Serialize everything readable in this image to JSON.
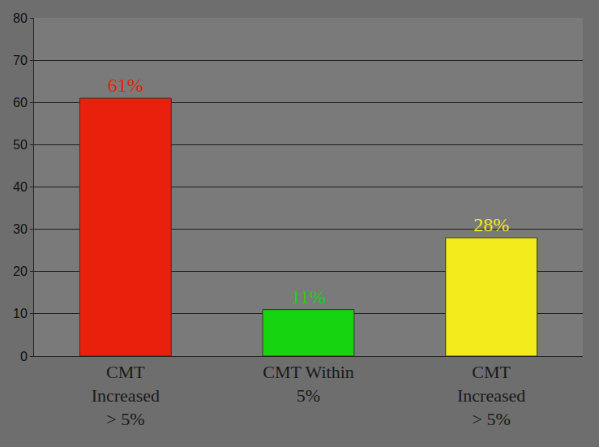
{
  "chart_data": {
    "type": "bar",
    "categories": [
      "CMT Increased > 5%",
      "CMT Within 5%",
      "CMT Increased > 5%"
    ],
    "values": [
      61,
      11,
      28
    ],
    "value_labels": [
      "61%",
      "11%",
      "28%"
    ],
    "colors": [
      "#e8200c",
      "#16d410",
      "#f2ea1a"
    ],
    "ylim": [
      0,
      80
    ],
    "yticks": [
      0,
      10,
      20,
      30,
      40,
      50,
      60,
      70,
      80
    ],
    "grid": true,
    "data_labels": true
  }
}
